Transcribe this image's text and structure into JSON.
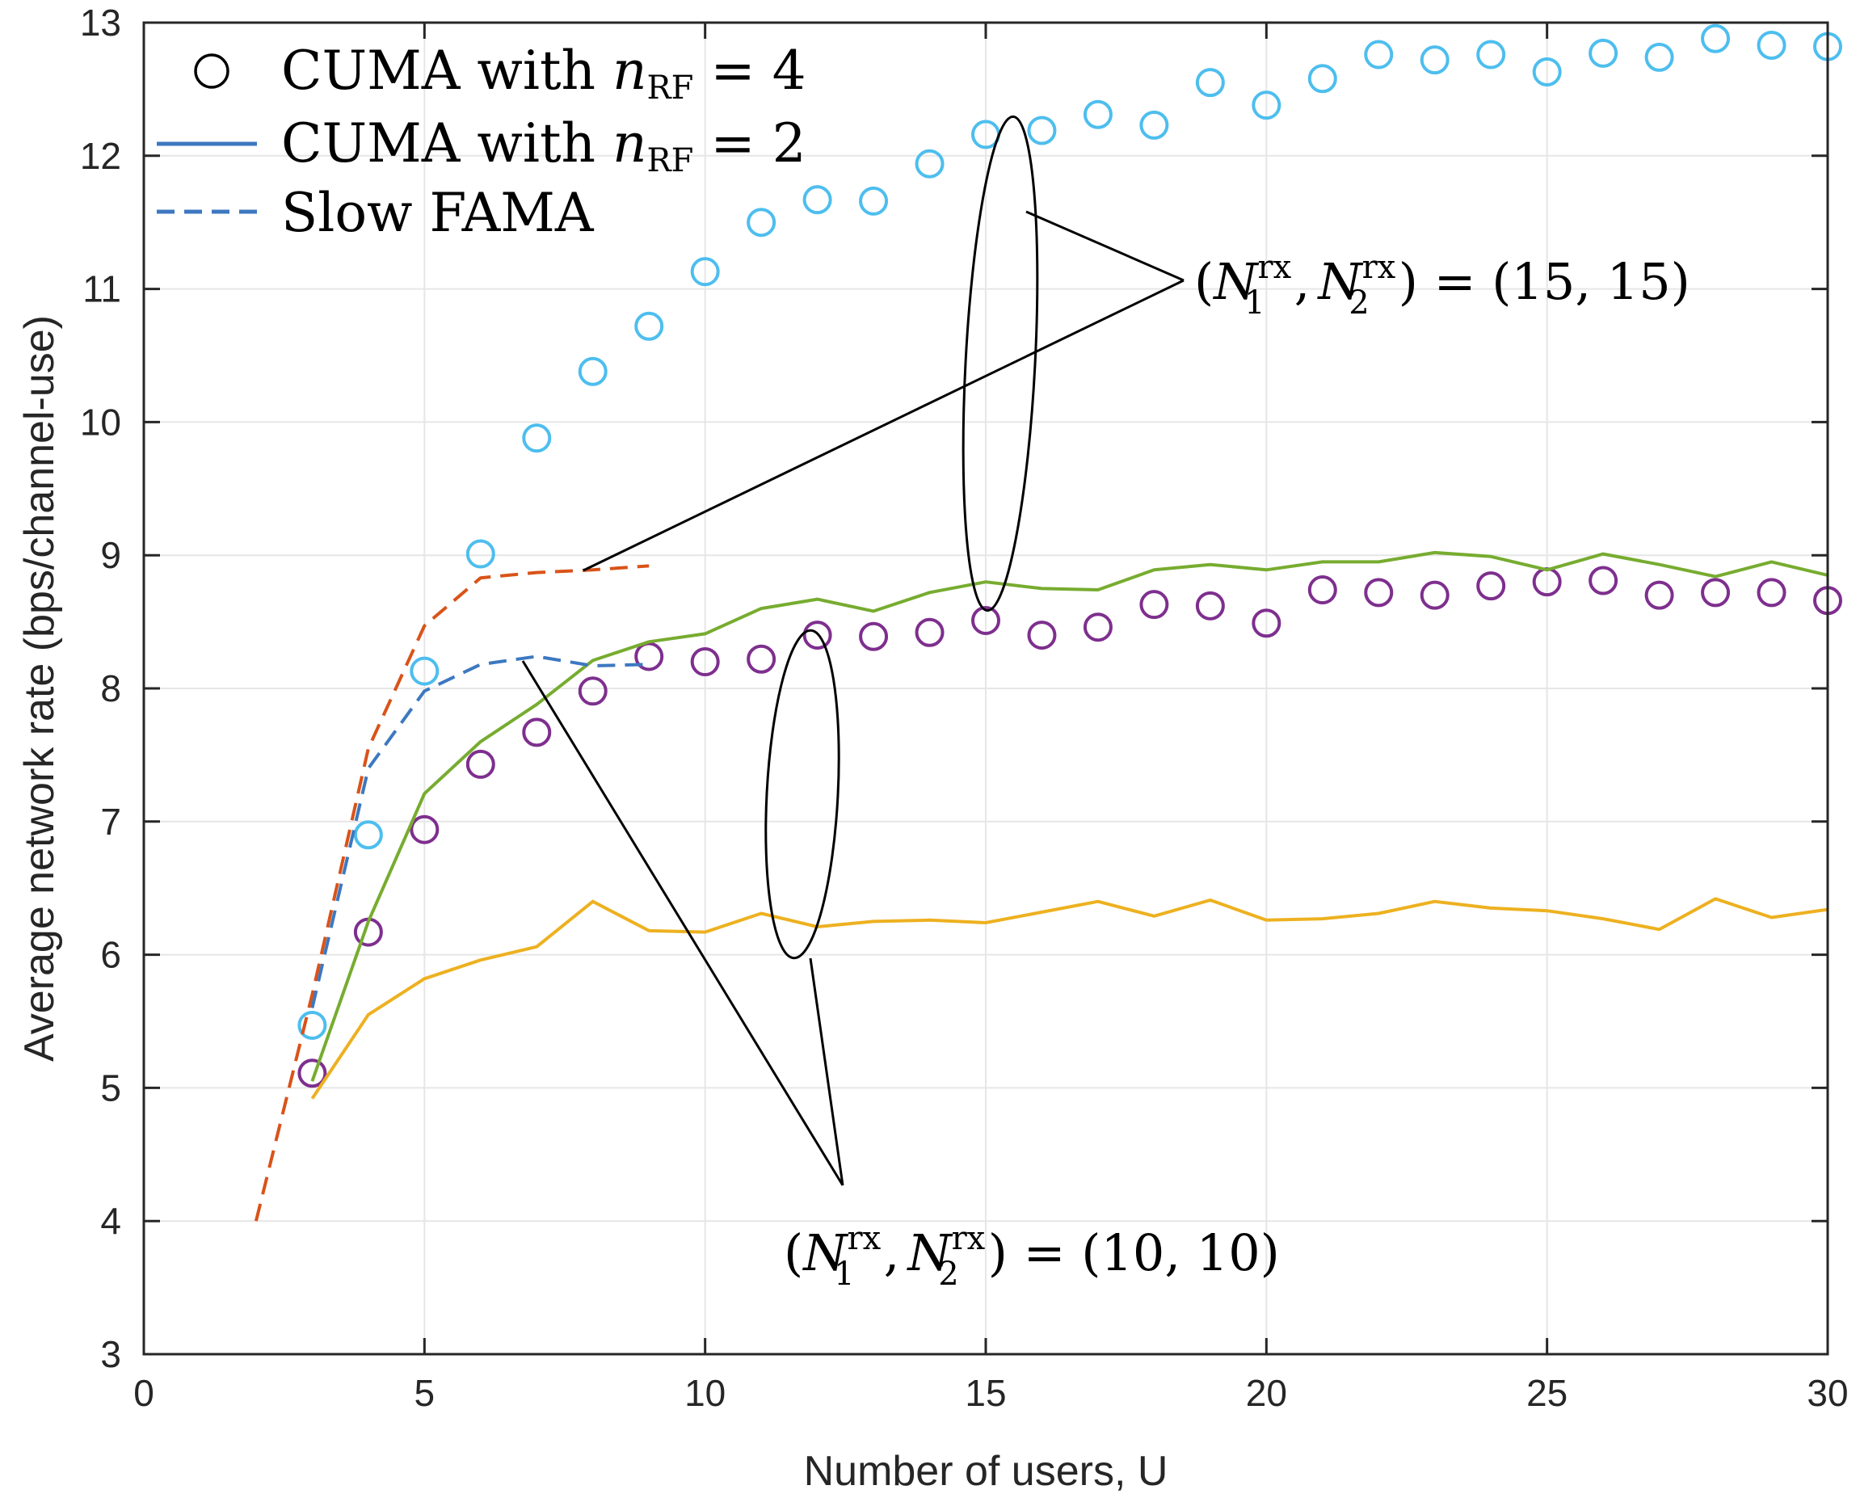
{
  "chart_data": {
    "type": "line",
    "xlabel": "Number of users, U",
    "ylabel": "Average network rate (bps/channel-use)",
    "xlim": [
      0,
      30
    ],
    "ylim": [
      3,
      13
    ],
    "x_ticks": [
      0,
      5,
      10,
      15,
      20,
      25,
      30
    ],
    "y_ticks": [
      3,
      4,
      5,
      6,
      7,
      8,
      9,
      10,
      11,
      12,
      13
    ],
    "grid": true,
    "legend_position": "top-left",
    "legend": {
      "items": [
        {
          "marker": "circle",
          "text_prefix": "CUMA with ",
          "var": "n",
          "sub": "RF",
          "text_suffix": " = 4"
        },
        {
          "marker": "solid",
          "text_prefix": "CUMA with ",
          "var": "n",
          "sub": "RF",
          "text_suffix": " = 2"
        },
        {
          "marker": "dashed",
          "text_prefix": "Slow FAMA",
          "var": "",
          "sub": "",
          "text_suffix": ""
        }
      ]
    },
    "annotations": [
      {
        "id": "top",
        "open": "(",
        "N": "N",
        "sup": "rx",
        "sub1": "1",
        "sub2": "2",
        "comma": ",",
        "close": ")",
        "eq": " = ",
        "value": "(15, 15)"
      },
      {
        "id": "bottom",
        "open": "(",
        "N": "N",
        "sup": "rx",
        "sub1": "1",
        "sub2": "2",
        "comma": ",",
        "close": ")",
        "eq": " = ",
        "value": "(10, 10)"
      }
    ],
    "series": [
      {
        "name": "CUMA nRF=4, (15,15)",
        "style": "circle",
        "color": "#4DBEEE",
        "x": [
          3,
          4,
          5,
          6,
          7,
          8,
          9,
          10,
          11,
          12,
          13,
          14,
          15,
          16,
          17,
          18,
          19,
          20,
          21,
          22,
          23,
          24,
          25,
          26,
          27,
          28,
          29,
          30
        ],
        "values": [
          5.47,
          6.9,
          8.13,
          9.01,
          9.88,
          10.38,
          10.72,
          11.13,
          11.5,
          11.67,
          11.66,
          11.94,
          12.16,
          12.19,
          12.31,
          12.23,
          12.55,
          12.38,
          12.58,
          12.76,
          12.72,
          12.76,
          12.63,
          12.77,
          12.74,
          12.88,
          12.83,
          12.82
        ]
      },
      {
        "name": "CUMA nRF=4, (10,10)",
        "style": "circle",
        "color": "#7E2F8E",
        "x": [
          3,
          4,
          5,
          6,
          7,
          8,
          9,
          10,
          11,
          12,
          13,
          14,
          15,
          16,
          17,
          18,
          19,
          20,
          21,
          22,
          23,
          24,
          25,
          26,
          27,
          28,
          29,
          30
        ],
        "values": [
          5.11,
          6.17,
          6.94,
          7.43,
          7.67,
          7.98,
          8.24,
          8.2,
          8.22,
          8.4,
          8.39,
          8.42,
          8.51,
          8.4,
          8.46,
          8.63,
          8.62,
          8.49,
          8.74,
          8.72,
          8.7,
          8.77,
          8.8,
          8.81,
          8.7,
          8.72,
          8.72,
          8.66
        ]
      },
      {
        "name": "CUMA nRF=2, (15,15)",
        "style": "solid",
        "color": "#77AC30",
        "x": [
          3,
          4,
          5,
          6,
          7,
          8,
          9,
          10,
          11,
          12,
          13,
          14,
          15,
          16,
          17,
          18,
          19,
          20,
          21,
          22,
          23,
          24,
          25,
          26,
          27,
          28,
          29,
          30
        ],
        "values": [
          5.05,
          6.25,
          7.21,
          7.6,
          7.88,
          8.21,
          8.35,
          8.41,
          8.6,
          8.67,
          8.58,
          8.72,
          8.8,
          8.75,
          8.74,
          8.89,
          8.93,
          8.89,
          8.95,
          8.95,
          9.02,
          8.99,
          8.89,
          9.01,
          8.93,
          8.84,
          8.95,
          8.85
        ]
      },
      {
        "name": "CUMA nRF=2, (10,10)",
        "style": "solid",
        "color": "#EDB120",
        "x": [
          3,
          4,
          5,
          6,
          7,
          8,
          9,
          10,
          11,
          12,
          13,
          14,
          15,
          16,
          17,
          18,
          19,
          20,
          21,
          22,
          23,
          24,
          25,
          26,
          27,
          28,
          29,
          30
        ],
        "values": [
          4.92,
          5.55,
          5.82,
          5.96,
          6.06,
          6.4,
          6.18,
          6.17,
          6.31,
          6.21,
          6.25,
          6.26,
          6.24,
          6.32,
          6.4,
          6.29,
          6.41,
          6.26,
          6.27,
          6.31,
          6.4,
          6.35,
          6.33,
          6.27,
          6.19,
          6.42,
          6.28,
          6.34
        ]
      },
      {
        "name": "Slow FAMA, (15,15)",
        "style": "dashed",
        "color": "#D95319",
        "x": [
          2,
          3,
          4,
          5,
          6,
          7,
          8,
          9
        ],
        "values": [
          4.0,
          5.7,
          7.55,
          8.47,
          8.83,
          8.87,
          8.89,
          8.92
        ]
      },
      {
        "name": "Slow FAMA, (10,10)",
        "style": "dashed",
        "color": "#3D78C0",
        "x": [
          3,
          4,
          5,
          6,
          7,
          8,
          9
        ],
        "values": [
          5.6,
          7.4,
          7.98,
          8.18,
          8.24,
          8.17,
          8.18
        ]
      }
    ]
  }
}
